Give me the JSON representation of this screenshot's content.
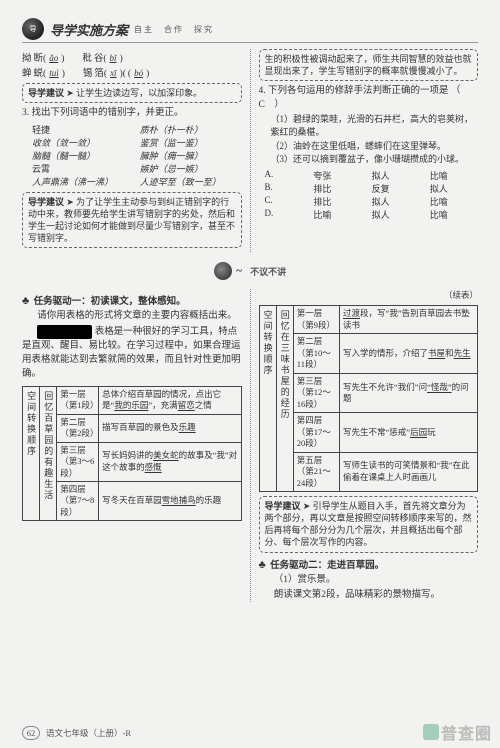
{
  "header": {
    "title": "导学实施方案",
    "sub": "自主　合作　探究"
  },
  "left": {
    "pinyin_rows": [
      [
        {
          "hz": "拗",
          "suf": "断(",
          "ans": "ǎo",
          "end": ")"
        },
        {
          "hz": "秕",
          "suf": "谷(",
          "ans": "bǐ",
          "end": ")"
        }
      ],
      [
        {
          "hz": "蝉",
          "suf": "蜕(",
          "ans": "tuì",
          "end": ")"
        },
        {
          "hz": "锡",
          "suf": "箔(",
          "ans": "xī",
          "end": ")(",
          "ans2": "bó",
          "end2": ")"
        }
      ]
    ],
    "tip1": {
      "label": "导学建议",
      "text": "让学生边读边写，以加深印象。"
    },
    "q3_title": "3. 找出下列词语中的错别字，并更正。",
    "fix_items": [
      {
        "w": "轻捷",
        "c": "质朴（扑→朴）"
      },
      {
        "w": "收敛",
        "c": "鉴赏（监→鉴）"
      },
      {
        "w": "脑髓",
        "c": "臃肿（痈→臃）"
      },
      {
        "w": "云霄",
        "c": "嫉妒（忌→嫉）"
      },
      {
        "w": "人声鼎沸",
        "c": "人迹罕至（致→至）"
      }
    ],
    "fix_items_display": [
      [
        "轻捷",
        "质朴（扑一朴）"
      ],
      [
        "收敛（敛一敛）",
        "鉴赏（监一鉴）"
      ],
      [
        "脑髓（髓一髓）",
        "臃肿（痈一臃）"
      ],
      [
        "云霄",
        "嫉妒（忌一嫉）"
      ],
      [
        "人声鼎沸（沸一沸）",
        "人迹罕至（致一至）"
      ]
    ],
    "tip2": {
      "label": "导学建议",
      "text": "为了让学生主动参与到纠正错别字的行动中来，教师要先给学生讲写错别字的劣处，然后和学生一起讨论如何才能做到尽量少写错别字，甚至不写错别字。"
    }
  },
  "right": {
    "intro": "生的积极性被调动起来了，师生共同智慧的效益也就显现出来了，学生写错别字的概率就慢慢减小了。",
    "q4_title": "4. 下列各句运用的修辞手法判断正确的一项是",
    "q4_blank_label": "（　C　）",
    "q4_items": [
      "（1）碧绿的菜畦，光滑的石井栏，高大的皂荚树，紫红的桑椹。",
      "（2）油蛉在这里低唱，蟋蟀们在这里弹琴。",
      "（3）还可以摘到覆盆子，像小珊瑚攒成的小球。"
    ],
    "q4_opts": [
      [
        "A.",
        "夸张",
        "拟人",
        "比喻"
      ],
      [
        "B.",
        "排比",
        "反复",
        "拟人"
      ],
      [
        "C.",
        "排比",
        "拟人",
        "比喻"
      ],
      [
        "D.",
        "比喻",
        "拟人",
        "比喻"
      ]
    ]
  },
  "section_heading": "不议不讲",
  "task1": {
    "title": "任务驱动一：初读课文，整体感知。",
    "text1": "请你用表格的形式将文章的主要内容概括出来。",
    "note_prefix": "",
    "note_text": "表格是一种很好的学习工具，特点是直观、醒目、易比较。在学习过程中，如果合理运用表格就能达到去繁就简的效果，而且针对性更加明确。"
  },
  "table_left": {
    "col0": "空间转换顺序",
    "col1": "回忆百草园的有趣生活",
    "rows": [
      {
        "layer": "第一层",
        "range": "（第1段）",
        "desc_a": "总体介绍百草园的情况，点出它是“",
        "desc_fill": "我的乐园",
        "desc_b": "”，充满",
        "desc_fill2": "留恋",
        "desc_c": "之情"
      },
      {
        "layer": "第二层",
        "range": "（第2段）",
        "desc_a": "描写百草园的景色及",
        "desc_fill": "乐趣",
        "desc_b": ""
      },
      {
        "layer": "第三层",
        "range": "（第3～6段）",
        "desc_a": "写长妈妈讲的",
        "desc_fill": "美女蛇",
        "desc_b": "的故事及“我”对这个故事的",
        "desc_fill2": "感慨",
        "desc_c": ""
      },
      {
        "layer": "第四层",
        "range": "（第7～8段）",
        "desc_a": "写冬天在百草园",
        "desc_fill": "雪地捕鸟",
        "desc_b": "的乐趣"
      }
    ]
  },
  "table_right": {
    "cont": "（续表）",
    "col0": "空间转换顺序",
    "col1": "回忆在三味书屋的经历",
    "rows": [
      {
        "layer": "第一层",
        "range": "（第9段）",
        "desc_a": "",
        "desc_fill": "过渡",
        "desc_b": "段，写“我”告别百草园去书塾读书"
      },
      {
        "layer": "第二层",
        "range": "（第10～11段）",
        "desc_a": "写入学的情形，介绍了",
        "desc_fill": "书屋",
        "desc_b": "和",
        "desc_fill2": "先生",
        "desc_c": ""
      },
      {
        "layer": "第三层",
        "range": "（第12～16段）",
        "desc_a": "写先生不允许“我们”问",
        "desc_fill": "“怪哉”",
        "desc_b": "的问题"
      },
      {
        "layer": "第四层",
        "range": "（第17～20段）",
        "desc_a": "写先生不常“惩戒”",
        "desc_fill": "后园",
        "desc_b": "玩"
      },
      {
        "layer": "第五层",
        "range": "（第21～24段）",
        "desc_a": "写师生读书的可笑情景和“我”在此偷着在课桌上",
        "desc_fill": "",
        "desc_b": "人时画画儿"
      }
    ]
  },
  "tip3": {
    "label": "导学建议",
    "text": "引导学生从题目入手，首先将文章分为两个部分，再以文章是按照空间转移顺序来写的，然后再将每个部分分为几个层次，并且概括出每个部分、每个层次写作的内容。"
  },
  "task2": {
    "title": "任务驱动二：走进百草园。",
    "sub": "（1）赏乐景。",
    "text": "朗读课文第2段，品味精彩的景物描写。"
  },
  "footer": {
    "page": "62",
    "label": "语文七年级（上册）-R"
  },
  "watermark": "普查圈"
}
